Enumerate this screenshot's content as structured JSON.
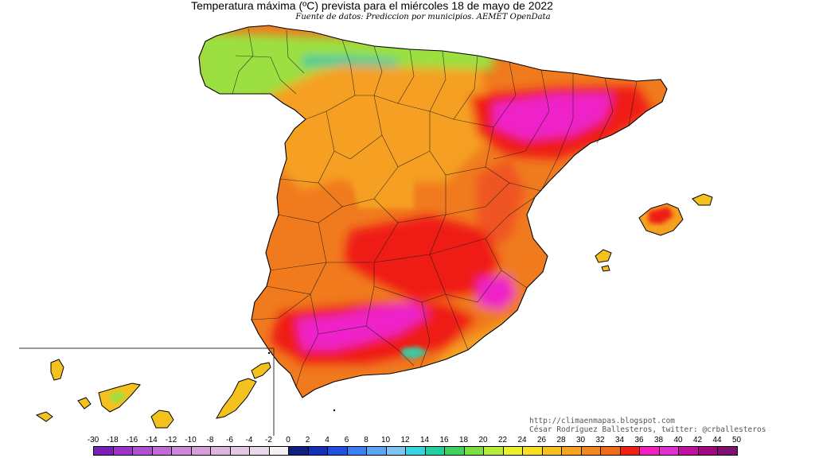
{
  "title": "Temperatura máxima (ºC) prevista para el miércoles 18 de mayo de 2022",
  "subtitle": "Fuente de datos: Prediccion por municipios. AEMET OpenData",
  "credits": {
    "line1": "http://climaenmapas.blogspot.com",
    "line2": "César Rodríguez Ballesteros, twitter: @crballesteros"
  },
  "legend": {
    "labels": [
      "-30",
      "-18",
      "-16",
      "-14",
      "-12",
      "-10",
      "-8",
      "-6",
      "-4",
      "-2",
      "0",
      "2",
      "4",
      "6",
      "8",
      "10",
      "12",
      "14",
      "16",
      "18",
      "20",
      "22",
      "24",
      "26",
      "28",
      "30",
      "32",
      "34",
      "36",
      "38",
      "40",
      "42",
      "44",
      "50"
    ],
    "colors": [
      "#7a1fb5",
      "#9b33c9",
      "#b04fd2",
      "#c06bd6",
      "#cd86d9",
      "#d69fdc",
      "#dcb5df",
      "#e2c8e4",
      "#e8dbe9",
      "#f4f0f4",
      "#102080",
      "#1530b8",
      "#2050e0",
      "#3b7ff0",
      "#5aa6f5",
      "#7fc4f5",
      "#38d4e0",
      "#20d0a0",
      "#40d060",
      "#7ae040",
      "#b8ec3a",
      "#e8f030",
      "#f8e020",
      "#f8c020",
      "#f5a520",
      "#f08820",
      "#f06a18",
      "#f02010",
      "#f020c0",
      "#e030d0",
      "#c010a0",
      "#a00880",
      "#801070"
    ]
  },
  "map": {
    "colors": {
      "coast": "#000000",
      "inset_frame": "#333333",
      "t_14_18": "#3cc8a0",
      "t_18_22": "#9be040",
      "t_22_26": "#f3c21f",
      "t_26_30": "#f5a020",
      "t_30_32": "#f07a1e",
      "t_32_34": "#ef5520",
      "t_34_36": "#ef1e14",
      "t_36_40": "#ee20c8"
    }
  }
}
